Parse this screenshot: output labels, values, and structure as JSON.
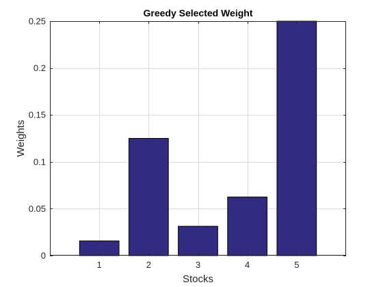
{
  "chart_data": {
    "type": "bar",
    "title": "Greedy Selected Weight",
    "xlabel": "Stocks",
    "ylabel": "Weights",
    "categories": [
      "1",
      "2",
      "3",
      "4",
      "5"
    ],
    "values": [
      0.015625,
      0.125,
      0.03125,
      0.0625,
      0.25
    ],
    "ylim": [
      0,
      0.25
    ],
    "yticks": [
      0,
      0.05,
      0.1,
      0.15,
      0.2,
      0.25
    ],
    "ytick_labels": [
      "0",
      "0.05",
      "0.1",
      "0.15",
      "0.2",
      "0.25"
    ],
    "grid": true,
    "box": true,
    "bar_color": "#332a82",
    "bar_edge_color": "#000000",
    "grid_color": "#dcdcdc",
    "axis_color": "#262626"
  }
}
